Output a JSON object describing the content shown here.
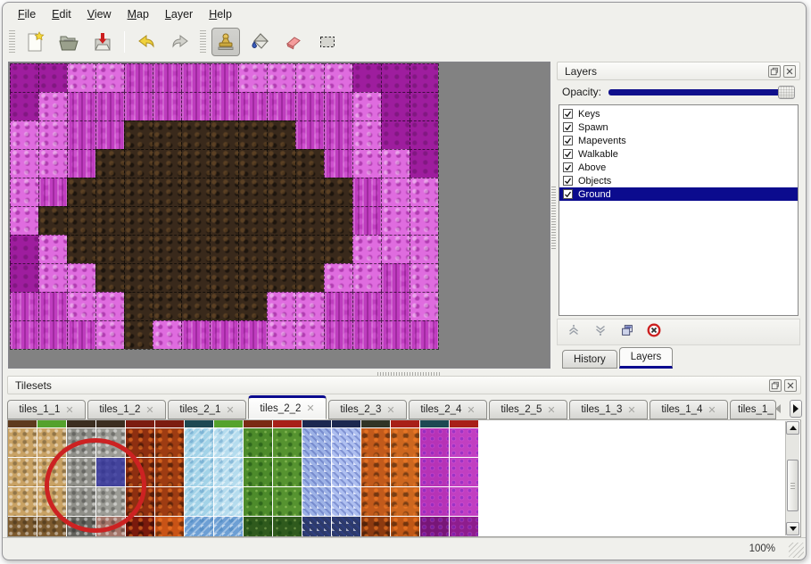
{
  "colors": {
    "accent": "#0b0b8f",
    "canvas_bg": "#828282",
    "annotation": "#cc2222",
    "selection_overlay": "rgba(43,43,158,0.78)",
    "selected_row_bg": "#0b0b8e"
  },
  "menu": {
    "items": [
      "File",
      "Edit",
      "View",
      "Map",
      "Layer",
      "Help"
    ]
  },
  "toolbar": {
    "items": [
      {
        "type": "grip"
      },
      {
        "type": "button",
        "name": "new-file"
      },
      {
        "type": "button",
        "name": "open-file"
      },
      {
        "type": "button",
        "name": "save-file"
      },
      {
        "type": "separator"
      },
      {
        "type": "button",
        "name": "undo"
      },
      {
        "type": "button",
        "name": "redo"
      },
      {
        "type": "grip"
      },
      {
        "type": "button",
        "name": "stamp-tool",
        "active": true
      },
      {
        "type": "button",
        "name": "fill-tool"
      },
      {
        "type": "button",
        "name": "eraser-tool"
      },
      {
        "type": "button",
        "name": "select-tool"
      }
    ]
  },
  "layers_dock": {
    "title": "Layers",
    "opacity_label": "Opacity:",
    "opacity_percent": 100,
    "layers": [
      {
        "name": "Keys",
        "checked": true
      },
      {
        "name": "Spawn",
        "checked": true
      },
      {
        "name": "Mapevents",
        "checked": true
      },
      {
        "name": "Walkable",
        "checked": true
      },
      {
        "name": "Above",
        "checked": true
      },
      {
        "name": "Objects",
        "checked": true
      },
      {
        "name": "Ground",
        "checked": true,
        "selected": true
      }
    ],
    "actions": [
      "move-layer-up",
      "move-layer-down",
      "duplicate-layer",
      "delete-layer"
    ],
    "tabs": [
      {
        "label": "History",
        "active": false
      },
      {
        "label": "Layers",
        "active": true
      }
    ]
  },
  "tilesets_dock": {
    "title": "Tilesets",
    "close_glyph": "✕",
    "tabs": [
      {
        "label": "tiles_1_1"
      },
      {
        "label": "tiles_1_2"
      },
      {
        "label": "tiles_2_1"
      },
      {
        "label": "tiles_2_2",
        "active": true
      },
      {
        "label": "tiles_2_3"
      },
      {
        "label": "tiles_2_4"
      },
      {
        "label": "tiles_2_5"
      },
      {
        "label": "tiles_1_3"
      },
      {
        "label": "tiles_1_4"
      },
      {
        "label": "tiles_1_",
        "truncated": true
      }
    ],
    "grid": {
      "selected_cell": {
        "row": 1,
        "col": 3
      },
      "columns": [
        {
          "top": "#5e3a1e",
          "body": "#c9a264",
          "bottom": "#7c5a2e",
          "texture": "pebble"
        },
        {
          "top": "#55a22c",
          "body": "#c9a264",
          "bottom": "#7c5a2e",
          "texture": "pebble"
        },
        {
          "top": "#3c2e20",
          "body": "#8f8f89",
          "bottom": "#63635d",
          "texture": "pebble"
        },
        {
          "top": "#3c2e20",
          "body": "#9c9c96",
          "bottom": "#a4766a",
          "texture": "pebble"
        },
        {
          "top": "#7c1c10",
          "body": "#8e2f10",
          "bottom": "#7a1a0c",
          "texture": "lava"
        },
        {
          "top": "#7c1c10",
          "body": "#9e3c12",
          "bottom": "#c85316",
          "texture": "lava"
        },
        {
          "top": "#1d4852",
          "body": "#a3d3e8",
          "bottom": "#6d9fd4",
          "texture": "ice"
        },
        {
          "top": "#55a22c",
          "body": "#b5dcee",
          "bottom": "#6d9fd4",
          "texture": "ice"
        },
        {
          "top": "#7a2a14",
          "body": "#4d8b2b",
          "bottom": "#2f5a1d",
          "texture": "vine"
        },
        {
          "top": "#a82018",
          "body": "#569330",
          "bottom": "#2f5a1d",
          "texture": "vine"
        },
        {
          "top": "#1c2850",
          "body": "#9db2e6",
          "bottom": "#2d3a6a",
          "texture": "crystal"
        },
        {
          "top": "#1c2850",
          "body": "#aebff0",
          "bottom": "#2d3a6a",
          "texture": "crystal"
        },
        {
          "top": "#303426",
          "body": "#c25a1b",
          "bottom": "#8c3a10",
          "texture": "lava"
        },
        {
          "top": "#a82018",
          "body": "#cd671f",
          "bottom": "#bf5716",
          "texture": "lava"
        },
        {
          "top": "#1d4852",
          "body": "#b633b6",
          "bottom": "#771677",
          "texture": "cell"
        },
        {
          "top": "#a82018",
          "body": "#c13fc1",
          "bottom": "#8d1d8d",
          "texture": "cell"
        }
      ]
    }
  },
  "map": {
    "tile_size": 32,
    "tile_colors": {
      "D": "#9e1d9e",
      "L": "#df6cdf",
      "M": "#bf3cbf",
      "B": "#39291b"
    },
    "tile_legend": {
      "D": "dark-magenta",
      "L": "light-pink",
      "M": "magenta",
      "B": "brown-dirt"
    },
    "rows": [
      "DDLLMMMMLLLLDDD",
      "DLMMMMMMMMMMLDD",
      "LLMMBBBBBBMMLDD",
      "LLMBBBBBBBBMLLD",
      "LMBBBBBBBBBBMLL",
      "LBBBBBBBBBBBMLL",
      "DLBBBBBBBBBBLLL",
      "DLLBBBBBBBBLLML",
      "MMLLBBBBBLLMMML",
      "MMMLBLMMMLLMMMM"
    ]
  },
  "status": {
    "zoom": "100%"
  }
}
